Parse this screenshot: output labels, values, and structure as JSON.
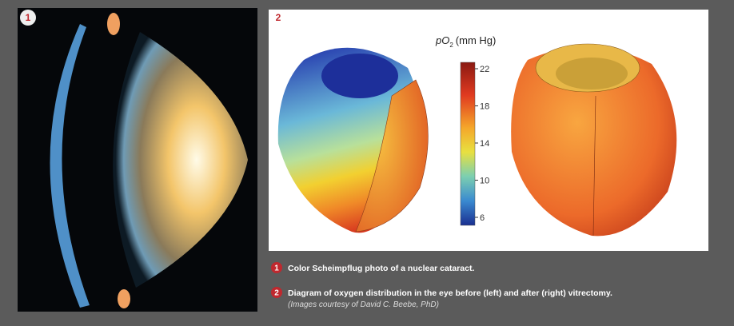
{
  "panel1": {
    "badge": "1"
  },
  "panel2": {
    "badge": "2",
    "colorbar": {
      "label_var": "pO",
      "label_sub": "2",
      "label_unit": "(mm Hg)",
      "ticks": [
        "22",
        "18",
        "14",
        "10",
        "6"
      ]
    }
  },
  "captions": [
    {
      "badge": "1",
      "text": "Color Scheimpflug photo of a nuclear cataract."
    },
    {
      "badge": "2",
      "text": "Diagram of oxygen distribution in the eye before (left) and after (right) vitrectomy.",
      "credit": "(Images courtesy of David C. Beebe, PhD)"
    }
  ]
}
